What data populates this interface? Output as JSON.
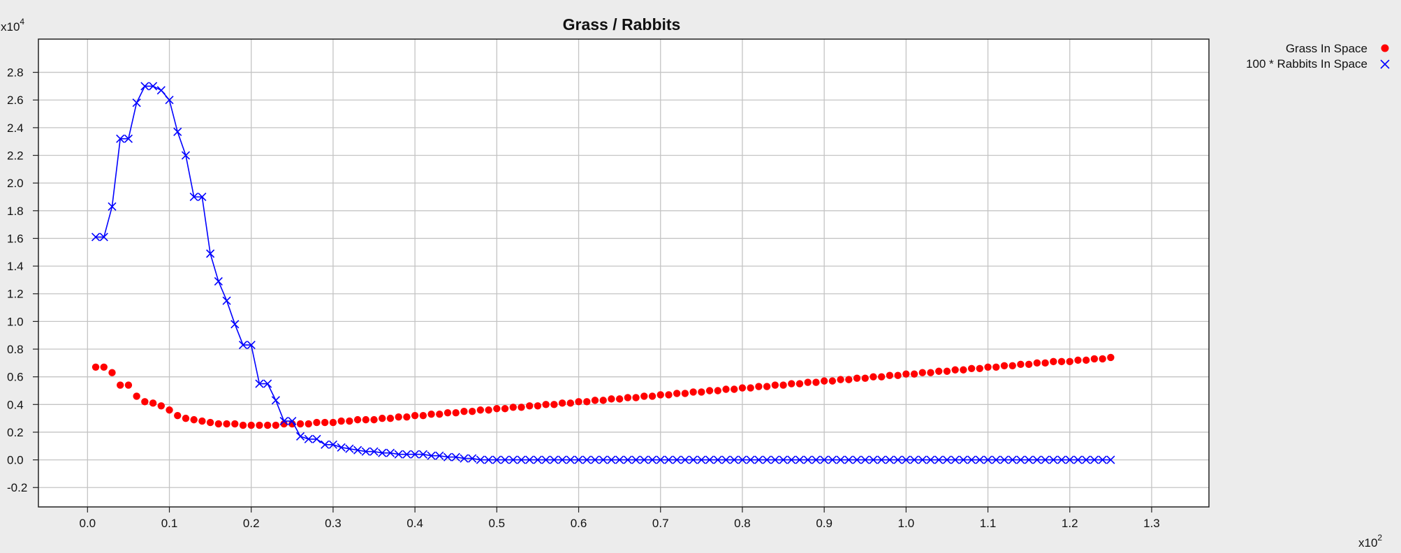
{
  "chart_data": {
    "type": "line",
    "title": "Grass / Rabbits",
    "xlabel": "",
    "ylabel": "",
    "x_multiplier": "x10",
    "x_multiplier_exp": "2",
    "y_multiplier": "x10",
    "y_multiplier_exp": "4",
    "xlim": [
      -0.06,
      1.37
    ],
    "ylim": [
      -0.34,
      3.04
    ],
    "x_ticks": [
      "0.0",
      "0.1",
      "0.2",
      "0.3",
      "0.4",
      "0.5",
      "0.6",
      "0.7",
      "0.8",
      "0.9",
      "1.0",
      "1.1",
      "1.2",
      "1.3"
    ],
    "y_ticks": [
      "-0.2",
      "0.0",
      "0.2",
      "0.4",
      "0.6",
      "0.8",
      "1.0",
      "1.2",
      "1.4",
      "1.6",
      "1.8",
      "2.0",
      "2.2",
      "2.4",
      "2.6",
      "2.8"
    ],
    "grid": true,
    "legend_position": "top-right, outside plot",
    "series": [
      {
        "name": "Grass In Space",
        "color": "#ff0000",
        "marker": "circle",
        "line": false,
        "x_start": 0.01,
        "x_step": 0.01,
        "y": [
          0.67,
          0.67,
          0.63,
          0.54,
          0.54,
          0.46,
          0.42,
          0.41,
          0.39,
          0.36,
          0.32,
          0.3,
          0.29,
          0.28,
          0.27,
          0.26,
          0.26,
          0.26,
          0.25,
          0.25,
          0.25,
          0.25,
          0.25,
          0.26,
          0.26,
          0.26,
          0.26,
          0.27,
          0.27,
          0.27,
          0.28,
          0.28,
          0.29,
          0.29,
          0.29,
          0.3,
          0.3,
          0.31,
          0.31,
          0.32,
          0.32,
          0.33,
          0.33,
          0.34,
          0.34,
          0.35,
          0.35,
          0.36,
          0.36,
          0.37,
          0.37,
          0.38,
          0.38,
          0.39,
          0.39,
          0.4,
          0.4,
          0.41,
          0.41,
          0.42,
          0.42,
          0.43,
          0.43,
          0.44,
          0.44,
          0.45,
          0.45,
          0.46,
          0.46,
          0.47,
          0.47,
          0.48,
          0.48,
          0.49,
          0.49,
          0.5,
          0.5,
          0.51,
          0.51,
          0.52,
          0.52,
          0.53,
          0.53,
          0.54,
          0.54,
          0.55,
          0.55,
          0.56,
          0.56,
          0.57,
          0.57,
          0.58,
          0.58,
          0.59,
          0.59,
          0.6,
          0.6,
          0.61,
          0.61,
          0.62,
          0.62,
          0.63,
          0.63,
          0.64,
          0.64,
          0.65,
          0.65,
          0.66,
          0.66,
          0.67,
          0.67,
          0.68,
          0.68,
          0.69,
          0.69,
          0.7,
          0.7,
          0.71,
          0.71,
          0.71,
          0.72,
          0.72,
          0.73,
          0.73,
          0.74
        ]
      },
      {
        "name": "100 * Rabbits In Space",
        "color": "#0000ff",
        "marker": "x",
        "line": true,
        "x_start": 0.01,
        "x_step": 0.01,
        "y": [
          1.61,
          1.61,
          1.83,
          2.32,
          2.32,
          2.58,
          2.7,
          2.7,
          2.67,
          2.6,
          2.37,
          2.2,
          1.9,
          1.9,
          1.49,
          1.29,
          1.15,
          0.98,
          0.83,
          0.83,
          0.55,
          0.55,
          0.43,
          0.28,
          0.28,
          0.17,
          0.15,
          0.15,
          0.11,
          0.11,
          0.09,
          0.08,
          0.07,
          0.06,
          0.06,
          0.05,
          0.05,
          0.04,
          0.04,
          0.04,
          0.04,
          0.03,
          0.03,
          0.02,
          0.02,
          0.01,
          0.01,
          0.0,
          0.0,
          0.0,
          0.0,
          0.0,
          0.0,
          0.0,
          0.0,
          0.0,
          0.0,
          0.0,
          0.0,
          0.0,
          0.0,
          0.0,
          0.0,
          0.0,
          0.0,
          0.0,
          0.0,
          0.0,
          0.0,
          0.0,
          0.0,
          0.0,
          0.0,
          0.0,
          0.0,
          0.0,
          0.0,
          0.0,
          0.0,
          0.0,
          0.0,
          0.0,
          0.0,
          0.0,
          0.0,
          0.0,
          0.0,
          0.0,
          0.0,
          0.0,
          0.0,
          0.0,
          0.0,
          0.0,
          0.0,
          0.0,
          0.0,
          0.0,
          0.0,
          0.0,
          0.0,
          0.0,
          0.0,
          0.0,
          0.0,
          0.0,
          0.0,
          0.0,
          0.0,
          0.0,
          0.0,
          0.0,
          0.0,
          0.0,
          0.0,
          0.0,
          0.0,
          0.0,
          0.0,
          0.0,
          0.0,
          0.0,
          0.0,
          0.0,
          0.0
        ]
      }
    ]
  }
}
